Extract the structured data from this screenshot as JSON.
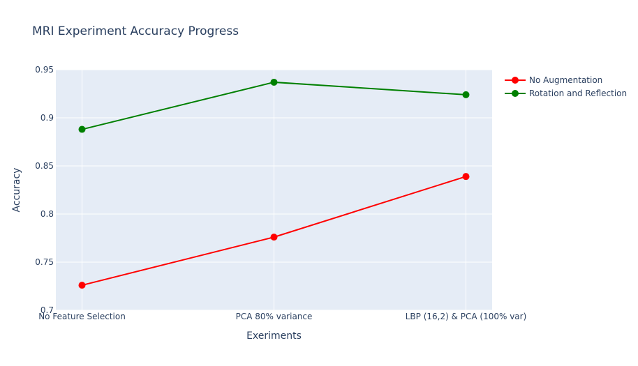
{
  "chart_data": {
    "type": "line",
    "title": "MRI Experiment Accuracy Progress",
    "xlabel": "Exeriments",
    "ylabel": "Accuracy",
    "categories": [
      "No Feature Selection",
      "PCA 80% variance",
      "LBP (16,2) & PCA (100% var)"
    ],
    "ylim": [
      0.7,
      0.95
    ],
    "yticks": [
      0.7,
      0.75,
      0.8,
      0.85,
      0.9,
      0.95
    ],
    "ytick_labels": [
      "0.7",
      "0.75",
      "0.8",
      "0.85",
      "0.9",
      "0.95"
    ],
    "grid": true,
    "legend_position": "top-right",
    "series": [
      {
        "name": "No Augmentation",
        "color": "#ff0000",
        "values": [
          0.726,
          0.776,
          0.839
        ]
      },
      {
        "name": "Rotation and Reflection",
        "color": "#008000",
        "values": [
          0.888,
          0.937,
          0.924
        ]
      }
    ],
    "plot_background": "#e5ecf6",
    "grid_color": "#ffffff",
    "text_color": "#2a3f5f"
  }
}
